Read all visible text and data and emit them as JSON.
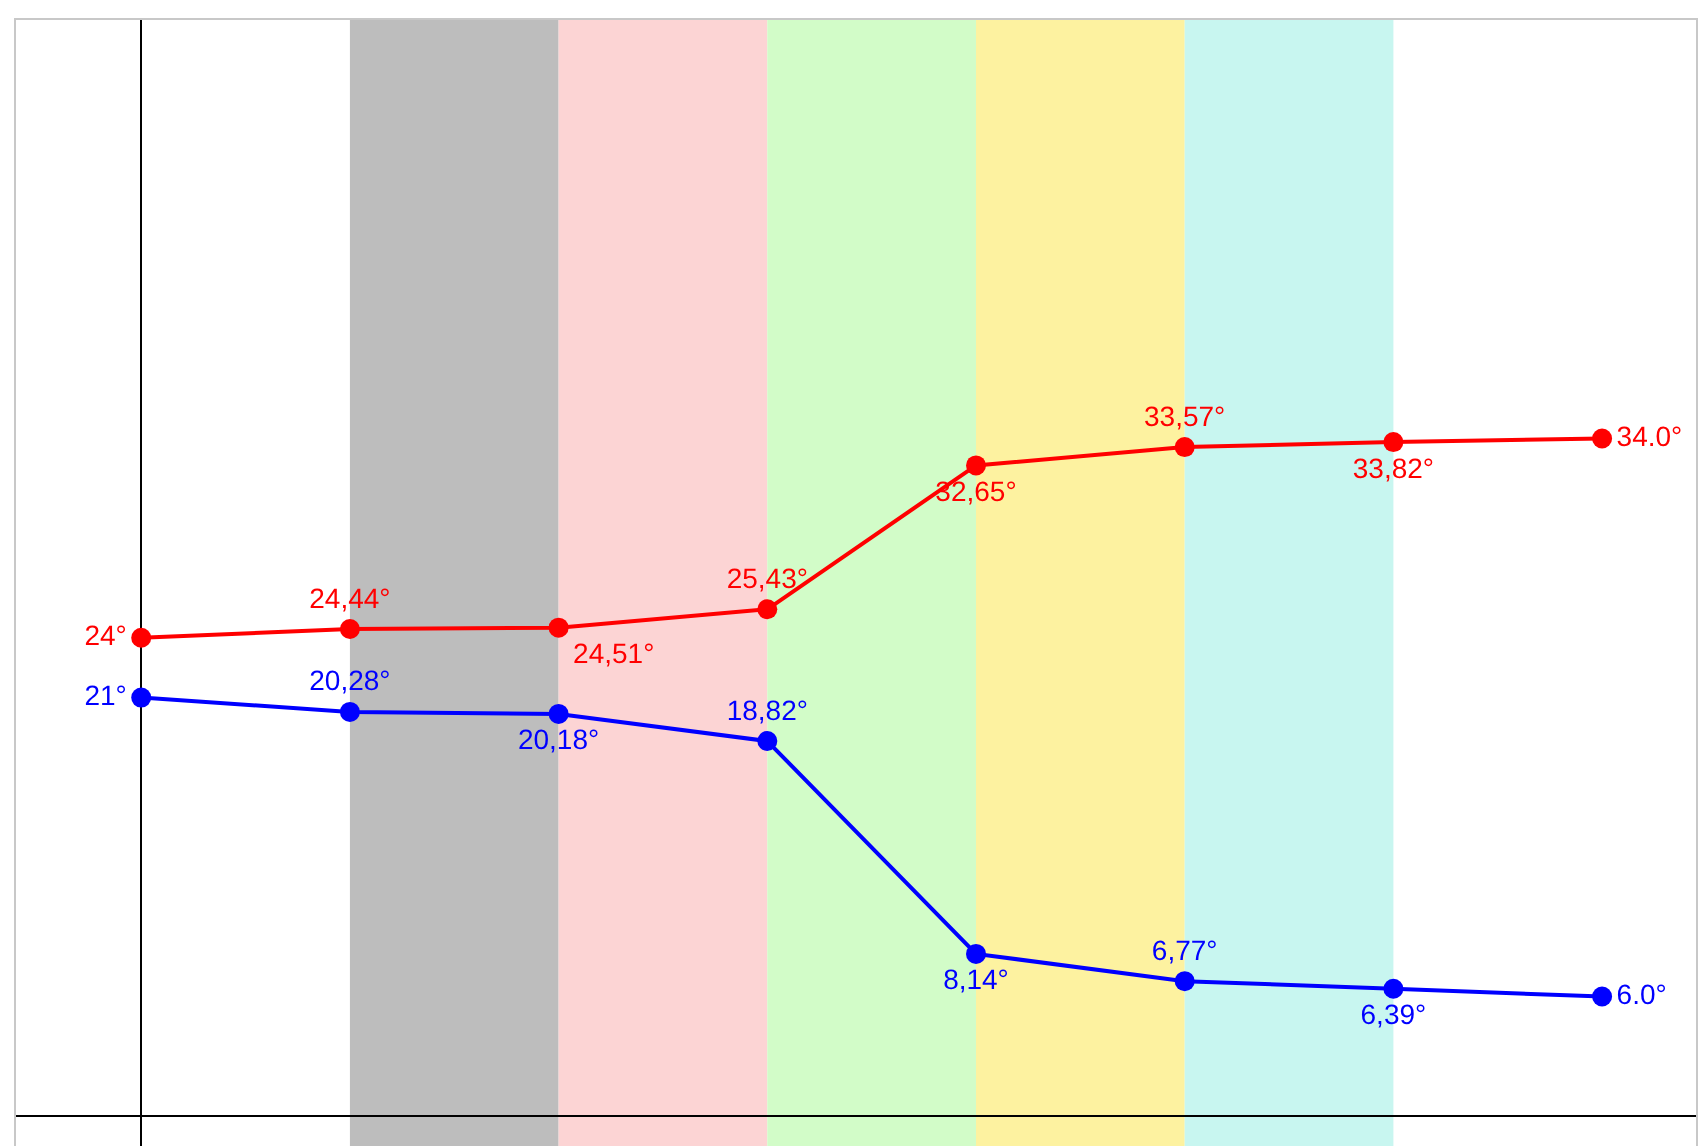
{
  "chart_data": {
    "type": "line",
    "categories": [
      null,
      null,
      null,
      null,
      null,
      null,
      null,
      null
    ],
    "ylim": [
      -1.5,
      55
    ],
    "tick_labels": false,
    "marker": "circle",
    "line_style": "solid",
    "series": [
      {
        "color": "#ff0000",
        "values": [
          24,
          24.44,
          24.51,
          25.43,
          32.65,
          33.57,
          33.82,
          34.0
        ],
        "value_labels": [
          "24°",
          "24,44°",
          "24,51°",
          "25,43°",
          "32,65°",
          "33,57°",
          "33,82°",
          "34.0°"
        ]
      },
      {
        "color": "#0000ff",
        "values": [
          21,
          20.28,
          20.18,
          18.82,
          8.14,
          6.77,
          6.39,
          6.0
        ],
        "value_labels": [
          "21°",
          "20,28°",
          "20,18°",
          "18,82°",
          "8,14°",
          "6,77°",
          "6,39°",
          "6.0°"
        ]
      }
    ]
  }
}
